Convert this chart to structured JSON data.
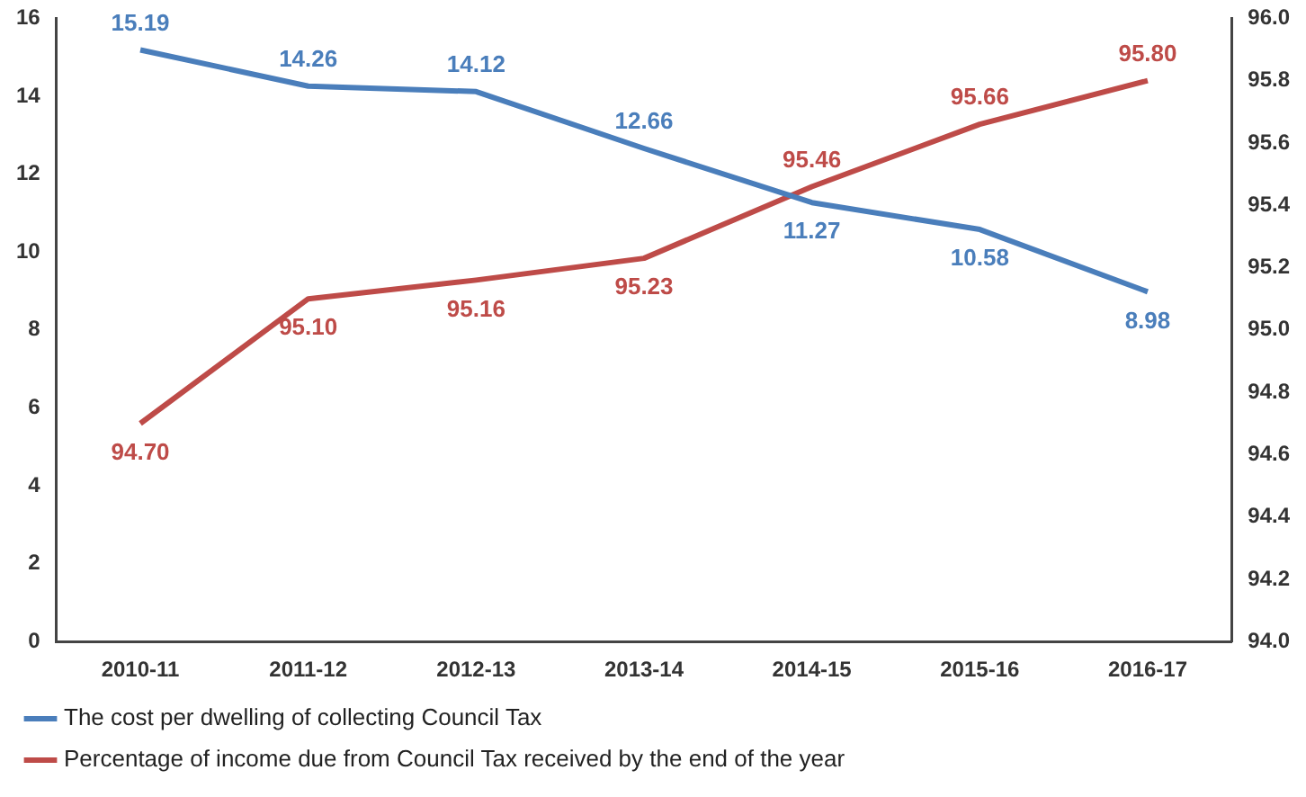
{
  "chart_data": {
    "type": "line",
    "categories": [
      "2010-11",
      "2011-12",
      "2012-13",
      "2013-14",
      "2014-15",
      "2015-16",
      "2016-17"
    ],
    "series": [
      {
        "name": "The cost per dwelling of collecting Council Tax",
        "color": "#4a7ebb",
        "values": [
          15.19,
          14.26,
          14.12,
          12.66,
          11.27,
          10.58,
          8.98
        ],
        "value_labels": [
          "15.19",
          "14.26",
          "14.12",
          "12.66",
          "11.27",
          "10.58",
          "8.98"
        ]
      },
      {
        "name": "Percentage of income due from Council Tax received by the end of the year",
        "color": "#be4b48",
        "values": [
          94.7,
          95.1,
          95.16,
          95.23,
          95.46,
          95.66,
          95.8
        ],
        "value_labels": [
          "94.70",
          "95.10",
          "95.16",
          "95.23",
          "95.46",
          "95.66",
          "95.80"
        ],
        "axis": "y2"
      }
    ],
    "ylim": [
      0,
      16
    ],
    "yticks": [
      0,
      2,
      4,
      6,
      8,
      10,
      12,
      14,
      16
    ],
    "y2lim": [
      94,
      96
    ],
    "y2ticks": [
      {
        "value": 94,
        "label": "94.0"
      },
      {
        "value": 94.2,
        "label": "94.2"
      },
      {
        "value": 94.4,
        "label": "94.4"
      },
      {
        "value": 94.6,
        "label": "94.6"
      },
      {
        "value": 94.8,
        "label": "94.8"
      },
      {
        "value": 95,
        "label": "95.0"
      },
      {
        "value": 95.2,
        "label": "95.2"
      },
      {
        "value": 95.4,
        "label": "95.4"
      },
      {
        "value": 95.6,
        "label": "95.6"
      },
      {
        "value": 95.8,
        "label": "95.8"
      },
      {
        "value": 96,
        "label": "96.0"
      }
    ],
    "legend": "bottom",
    "grid": false,
    "marker": "none",
    "line_style": "solid"
  }
}
